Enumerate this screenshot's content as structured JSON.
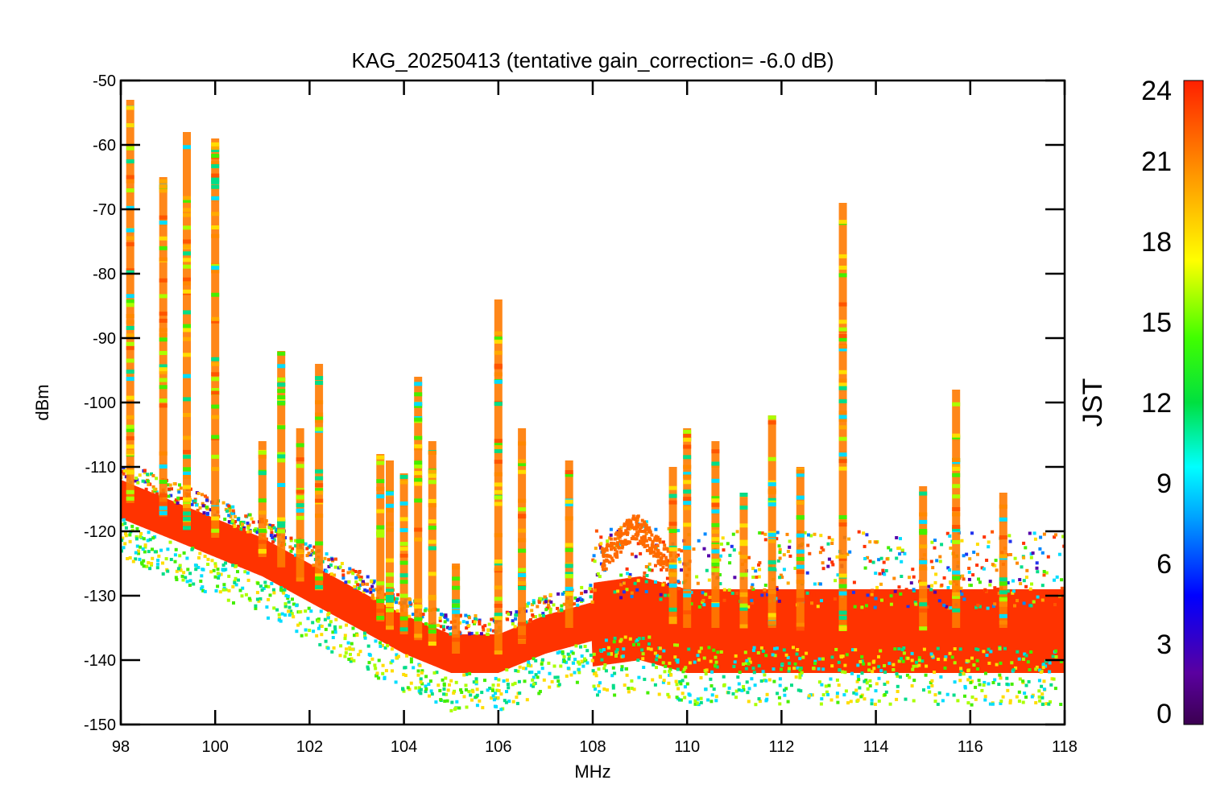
{
  "chart_data": {
    "type": "scatter",
    "title": "KAG_20250413 (tentative gain_correction= -6.0 dB)",
    "xlabel": "MHz",
    "ylabel": "dBm",
    "xlim": [
      98,
      118
    ],
    "ylim": [
      -150,
      -50
    ],
    "xticks": [
      "98",
      "100",
      "102",
      "104",
      "106",
      "108",
      "110",
      "112",
      "114",
      "116",
      "118"
    ],
    "yticks": [
      "-50",
      "-60",
      "-70",
      "-80",
      "-90",
      "-100",
      "-110",
      "-120",
      "-130",
      "-140",
      "-150"
    ],
    "colorbar": {
      "label": "JST",
      "range": [
        0,
        24
      ],
      "ticks": [
        "24",
        "21",
        "18",
        "15",
        "12",
        "9",
        "6",
        "3",
        "0"
      ],
      "colormap": "rainbow (purple-blue-cyan-green-yellow-orange-red)"
    },
    "noise_floor": [
      {
        "x": 98.0,
        "y": -115
      },
      {
        "x": 99.0,
        "y": -118
      },
      {
        "x": 100.0,
        "y": -121
      },
      {
        "x": 101.0,
        "y": -124
      },
      {
        "x": 102.0,
        "y": -128
      },
      {
        "x": 103.0,
        "y": -132
      },
      {
        "x": 104.0,
        "y": -136
      },
      {
        "x": 105.0,
        "y": -139
      },
      {
        "x": 106.0,
        "y": -139
      },
      {
        "x": 107.0,
        "y": -136
      },
      {
        "x": 108.0,
        "y": -134
      },
      {
        "x": 109.0,
        "y": -133
      },
      {
        "x": 110.0,
        "y": -135
      },
      {
        "x": 112.0,
        "y": -135
      },
      {
        "x": 114.0,
        "y": -135
      },
      {
        "x": 116.0,
        "y": -135
      },
      {
        "x": 118.0,
        "y": -135
      }
    ],
    "peaks": [
      {
        "x": 98.2,
        "y_max": -53
      },
      {
        "x": 98.9,
        "y_max": -65
      },
      {
        "x": 99.4,
        "y_max": -58
      },
      {
        "x": 100.0,
        "y_max": -59
      },
      {
        "x": 101.0,
        "y_max": -106
      },
      {
        "x": 101.4,
        "y_max": -92
      },
      {
        "x": 101.8,
        "y_max": -104
      },
      {
        "x": 102.2,
        "y_max": -94
      },
      {
        "x": 103.5,
        "y_max": -108
      },
      {
        "x": 103.7,
        "y_max": -109
      },
      {
        "x": 104.0,
        "y_max": -111
      },
      {
        "x": 104.3,
        "y_max": -96
      },
      {
        "x": 104.6,
        "y_max": -106
      },
      {
        "x": 105.1,
        "y_max": -125
      },
      {
        "x": 106.0,
        "y_max": -84
      },
      {
        "x": 106.5,
        "y_max": -104
      },
      {
        "x": 107.5,
        "y_max": -109
      },
      {
        "x": 109.7,
        "y_max": -110
      },
      {
        "x": 110.0,
        "y_max": -104
      },
      {
        "x": 110.6,
        "y_max": -106
      },
      {
        "x": 111.2,
        "y_max": -114
      },
      {
        "x": 111.8,
        "y_max": -102
      },
      {
        "x": 112.4,
        "y_max": -110
      },
      {
        "x": 113.3,
        "y_max": -69
      },
      {
        "x": 115.0,
        "y_max": -113
      },
      {
        "x": 115.7,
        "y_max": -98
      },
      {
        "x": 116.7,
        "y_max": -114
      }
    ]
  }
}
